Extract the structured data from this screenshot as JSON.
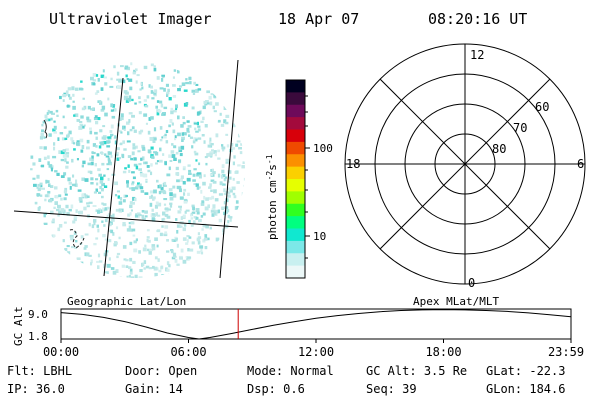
{
  "header": {
    "instrument": "Ultraviolet Imager",
    "date": "18 Apr 07",
    "time": "08:20:16 UT"
  },
  "colorbar": {
    "unit_label": "photon cm",
    "unit_exp_a": "-2",
    "unit_s": "s",
    "unit_exp_b": "-1",
    "tick_labels": [
      "100",
      "10"
    ],
    "colors": [
      "#000020",
      "#3a0a3c",
      "#6e0a5a",
      "#a30a3c",
      "#d8000a",
      "#ef4a00",
      "#fb8f00",
      "#fbd000",
      "#e6ff00",
      "#a0ff00",
      "#30ff20",
      "#00ff80",
      "#10e8d0",
      "#7ce8e8",
      "#c8f0f0",
      "#ecf8f8"
    ]
  },
  "left_panel": {
    "name": "Geographic Lat/Lon"
  },
  "polar_plot": {
    "name": "Apex MLat/MLT",
    "mlt_labels": {
      "top": "12",
      "left": "18",
      "right": "6",
      "bottom": "0"
    },
    "lat_labels": [
      "60",
      "70",
      "80"
    ]
  },
  "altitude_strip": {
    "ylabel": "GC Alt",
    "y_ticks": [
      "9.0",
      "1.8"
    ],
    "x_ticks": [
      "00:00",
      "06:00",
      "12:00",
      "18:00",
      "23:59"
    ],
    "current_time_hours": 8.34,
    "curve_color": "#000000",
    "marker_color": "#cc0000"
  },
  "info": {
    "row1": [
      {
        "key": "Flt:",
        "value": "LBHL"
      },
      {
        "key": "Door:",
        "value": "Open"
      },
      {
        "key": "Mode:",
        "value": "Normal"
      },
      {
        "key": "GC Alt:",
        "value": "3.5 Re"
      },
      {
        "key": "GLat:",
        "value": "-22.3"
      }
    ],
    "row2": [
      {
        "key": "IP:",
        "value": "36.0"
      },
      {
        "key": "Gain:",
        "value": "14"
      },
      {
        "key": "Dsp:",
        "value": "0.6"
      },
      {
        "key": "Seq:",
        "value": "39"
      },
      {
        "key": "GLon:",
        "value": "184.6"
      }
    ]
  }
}
